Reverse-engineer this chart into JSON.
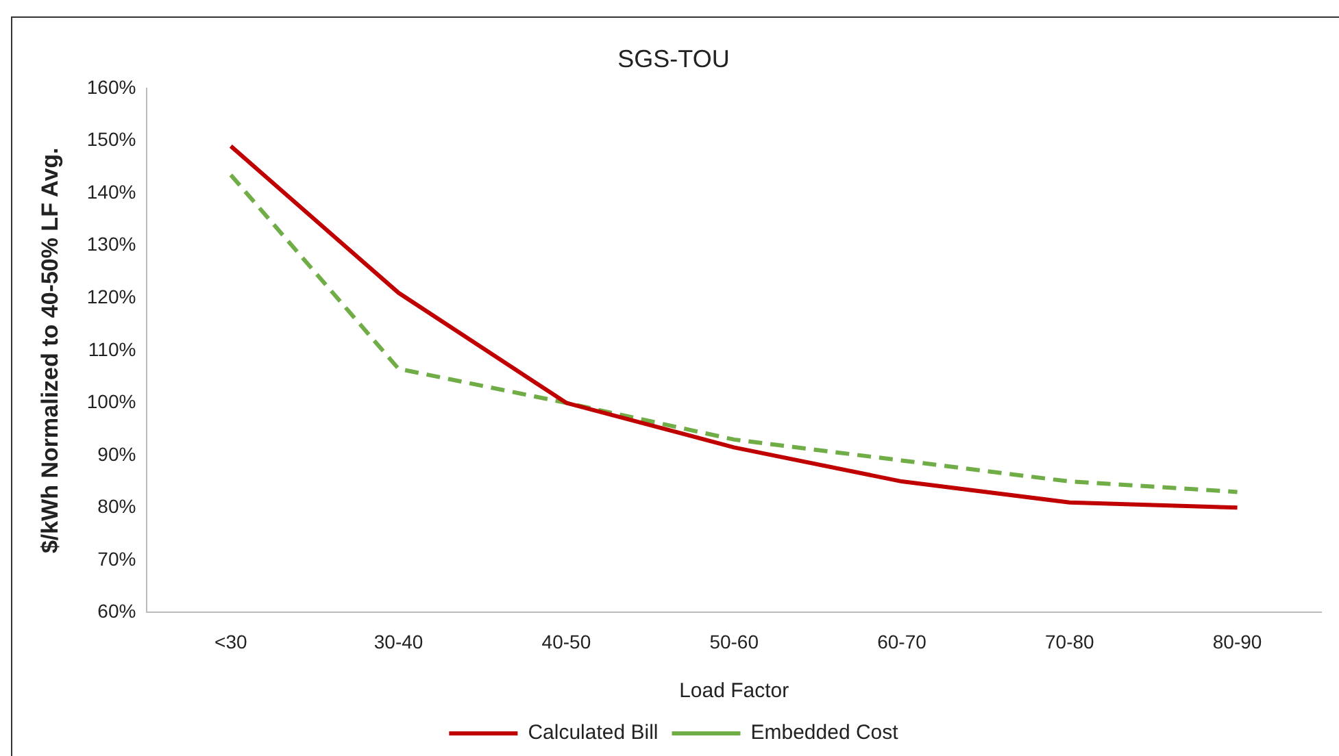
{
  "chart_data": {
    "type": "line",
    "title": "SGS-TOU",
    "xlabel": "Load Factor",
    "ylabel": "$/kWh Normalized to 40-50% LF Avg.",
    "categories": [
      "<30",
      "30-40",
      "40-50",
      "50-60",
      "60-70",
      "70-80",
      "80-90"
    ],
    "series": [
      {
        "name": "Calculated Bill",
        "color": "#c00000",
        "values": [
          149,
          121,
          100,
          91.5,
          85,
          81,
          80
        ],
        "line_style": "solid"
      },
      {
        "name": "Embedded Cost",
        "color": "#70ad47",
        "values": [
          143.5,
          106.5,
          100,
          93,
          89,
          85,
          83
        ],
        "line_style": "dashed"
      }
    ],
    "ylim": [
      60,
      160
    ],
    "yticks": [
      {
        "value": 60,
        "label": "60%"
      },
      {
        "value": 70,
        "label": "70%"
      },
      {
        "value": 80,
        "label": "80%"
      },
      {
        "value": 90,
        "label": "90%"
      },
      {
        "value": 100,
        "label": "100%"
      },
      {
        "value": 110,
        "label": "110%"
      },
      {
        "value": 120,
        "label": "120%"
      },
      {
        "value": 130,
        "label": "130%"
      },
      {
        "value": 140,
        "label": "140%"
      },
      {
        "value": 150,
        "label": "150%"
      },
      {
        "value": 160,
        "label": "160%"
      }
    ],
    "grid": false,
    "legend": "bottom",
    "marker": "none"
  }
}
